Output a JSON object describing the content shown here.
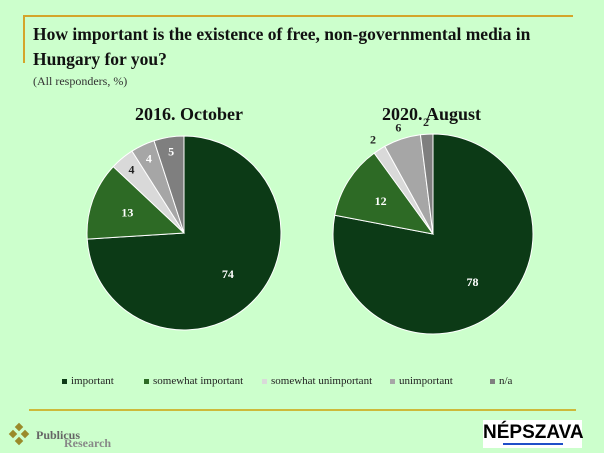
{
  "header": {
    "title": "How important is the existence of free, non-governmental media in Hungary for you?",
    "subtitle": "(All responders, %)"
  },
  "colors": {
    "important": "#0c3a16",
    "somewhat important": "#2d6a25",
    "somewhat unimportant": "#d9d9d9",
    "unimportant": "#a6a6a6",
    "n/a": "#7f7f7f",
    "accent": "#d4a52a"
  },
  "chart_data": [
    {
      "type": "pie",
      "title": "2016. October",
      "categories": [
        "important",
        "somewhat important",
        "somewhat unimportant",
        "unimportant",
        "n/a"
      ],
      "values": [
        74,
        13,
        4,
        4,
        5
      ]
    },
    {
      "type": "pie",
      "title": "2020. August",
      "categories": [
        "important",
        "somewhat important",
        "somewhat unimportant",
        "unimportant",
        "n/a"
      ],
      "values": [
        78,
        12,
        2,
        6,
        2
      ]
    }
  ],
  "legend": [
    "important",
    "somewhat important",
    "somewhat unimportant",
    "unimportant",
    "n/a"
  ],
  "footer": {
    "left_logo": "Publicus",
    "left_logo_sub": "Research",
    "right_logo": "NÉPSZAVA"
  }
}
